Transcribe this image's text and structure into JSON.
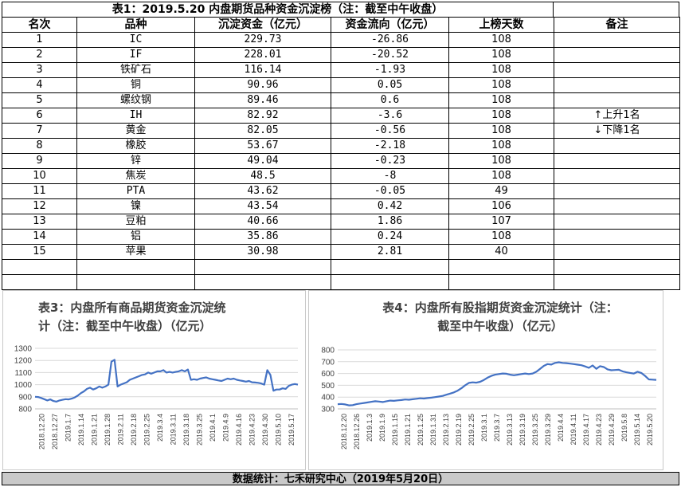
{
  "table": {
    "title": "表1：2019.5.20 内盘期货品种资金沉淀榜（注：截至中午收盘）",
    "headers": [
      "名次",
      "品种",
      "沉淀资金（亿元）",
      "资金流向（亿元）",
      "上榜天数",
      "备注"
    ],
    "rows": [
      {
        "rank": "1",
        "name": "IC",
        "capital": "229.73",
        "flow": "-26.86",
        "days": "108"
      },
      {
        "rank": "2",
        "name": "IF",
        "capital": "228.01",
        "flow": "-20.52",
        "days": "108"
      },
      {
        "rank": "3",
        "name": "铁矿石",
        "capital": "116.14",
        "flow": "-1.93",
        "days": "108"
      },
      {
        "rank": "4",
        "name": "铜",
        "capital": "90.96",
        "flow": "0.05",
        "days": "108"
      },
      {
        "rank": "5",
        "name": "螺纹钢",
        "capital": "89.46",
        "flow": "0.6",
        "days": "108"
      },
      {
        "rank": "6",
        "name": "IH",
        "capital": "82.92",
        "flow": "-3.6",
        "days": "108"
      },
      {
        "rank": "7",
        "name": "黄金",
        "capital": "82.05",
        "flow": "-0.56",
        "days": "108"
      },
      {
        "rank": "8",
        "name": "橡胶",
        "capital": "53.67",
        "flow": "-2.18",
        "days": "108"
      },
      {
        "rank": "9",
        "name": "锌",
        "capital": "49.04",
        "flow": "-0.23",
        "days": "108"
      },
      {
        "rank": "10",
        "name": "焦炭",
        "capital": "48.5",
        "flow": "-8",
        "days": "108"
      },
      {
        "rank": "11",
        "name": "PTA",
        "capital": "43.62",
        "flow": "-0.05",
        "days": "49"
      },
      {
        "rank": "12",
        "name": "镍",
        "capital": "43.54",
        "flow": "0.42",
        "days": "106"
      },
      {
        "rank": "13",
        "name": "豆粕",
        "capital": "40.66",
        "flow": "1.86",
        "days": "107"
      },
      {
        "rank": "14",
        "name": "铝",
        "capital": "35.86",
        "flow": "0.24",
        "days": "108"
      },
      {
        "rank": "15",
        "name": "苹果",
        "capital": "30.98",
        "flow": "2.81",
        "days": "40"
      }
    ],
    "notes": {
      "up": "上升1名",
      "down": "下降1名",
      "up_icon": "arrow-up-icon",
      "down_icon": "arrow-down-icon"
    }
  },
  "footer": "数据统计：七禾研究中心（2019年5月20日）",
  "chart_data": [
    {
      "type": "line",
      "title": "表3：内盘所有商品期货资金沉淀统计（注：截至中午收盘）（亿元）",
      "title_lines": [
        "表3：内盘所有商品期货资金沉淀统",
        "计（注：截至中午收盘）（亿元）"
      ],
      "ylim": [
        800,
        1300
      ],
      "yticks": [
        800,
        900,
        1000,
        1100,
        1200,
        1300
      ],
      "xticks": [
        "2018.12.20",
        "2018.12.27",
        "2019.1.7",
        "2019.1.14",
        "2019.1.21",
        "2019.1.28",
        "2019.2.11",
        "2019.2.18",
        "2019.2.25",
        "2019.3.4",
        "2019.3.11",
        "2019.3.18",
        "2019.3.25",
        "2019.4.1",
        "2019.4.9",
        "2019.4.16",
        "2019.4.23",
        "2019.4.30",
        "2019.5.10",
        "2019.5.17"
      ],
      "grid": true,
      "color": "#4472c4",
      "values": [
        900,
        898,
        890,
        880,
        870,
        878,
        865,
        860,
        870,
        875,
        880,
        878,
        885,
        895,
        910,
        930,
        945,
        965,
        975,
        960,
        970,
        985,
        975,
        985,
        1000,
        1190,
        1205,
        985,
        1000,
        1010,
        1020,
        1040,
        1050,
        1060,
        1070,
        1080,
        1085,
        1100,
        1090,
        1100,
        1110,
        1110,
        1120,
        1100,
        1105,
        1100,
        1105,
        1110,
        1120,
        1110,
        1125,
        1040,
        1045,
        1040,
        1050,
        1055,
        1060,
        1050,
        1045,
        1040,
        1035,
        1030,
        1040,
        1050,
        1045,
        1050,
        1040,
        1035,
        1030,
        1025,
        1030,
        1020,
        1018,
        1015,
        1010,
        1000,
        1120,
        1080,
        950,
        960,
        960,
        970,
        965,
        990,
        1000,
        1005,
        1000
      ]
    },
    {
      "type": "line",
      "title": "表4：内盘所有股指期货资金沉淀统计（注：截至中午收盘）（亿元）",
      "title_lines": [
        "表4：内盘所有股指期货资金沉淀统计（注：",
        "截至中午收盘）（亿元）"
      ],
      "ylim": [
        300,
        800
      ],
      "yticks": [
        300,
        400,
        500,
        600,
        700,
        800
      ],
      "xticks": [
        "2018.12.20",
        "2018.12.26",
        "2019.1.3",
        "2019.1.9",
        "2019.1.15",
        "2019.1.21",
        "2019.1.25",
        "2019.1.31",
        "2019.2.13",
        "2019.2.19",
        "2019.2.25",
        "2019.3.1",
        "2019.3.7",
        "2019.3.13",
        "2019.3.19",
        "2019.3.25",
        "2019.3.29",
        "2019.4.4",
        "2019.4.11",
        "2019.4.17",
        "2019.4.23",
        "2019.4.29",
        "2019.5.8",
        "2019.5.14",
        "2019.5.20"
      ],
      "grid": true,
      "color": "#4472c4",
      "values": [
        340,
        342,
        338,
        330,
        332,
        340,
        345,
        350,
        355,
        360,
        365,
        362,
        358,
        365,
        370,
        368,
        372,
        375,
        380,
        378,
        382,
        386,
        390,
        388,
        392,
        395,
        400,
        405,
        410,
        420,
        430,
        440,
        455,
        475,
        500,
        520,
        525,
        522,
        530,
        545,
        565,
        580,
        590,
        595,
        600,
        598,
        590,
        585,
        590,
        595,
        600,
        595,
        600,
        615,
        640,
        665,
        680,
        676,
        690,
        695,
        690,
        688,
        684,
        680,
        675,
        670,
        660,
        648,
        668,
        640,
        662,
        655,
        635,
        628,
        630,
        632,
        618,
        610,
        605,
        600,
        615,
        605,
        580,
        550,
        548,
        546
      ]
    }
  ]
}
